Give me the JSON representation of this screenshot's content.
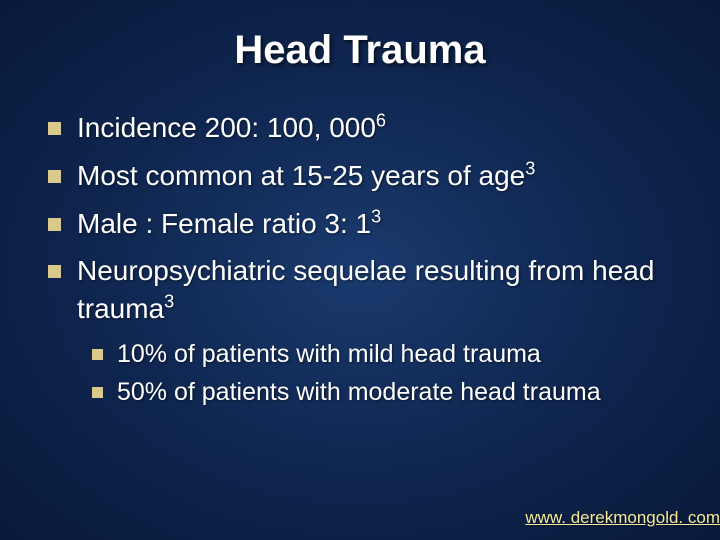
{
  "slide": {
    "title": "Head Trauma",
    "background_gradient": [
      "#1a3a6e",
      "#0f2650",
      "#081a3a"
    ],
    "title_color": "#ffffff",
    "text_color": "#ffffff",
    "bullet_color": "#d9c98a",
    "link_color": "#f5e89a",
    "title_fontsize": 40,
    "main_fontsize": 28,
    "sub_fontsize": 25,
    "main_bullets": [
      {
        "text": "Incidence 200: 100, 000",
        "sup": "6"
      },
      {
        "text": "Most common at 15-25 years of age",
        "sup": "3"
      },
      {
        "text": "Male : Female ratio 3: 1",
        "sup": "3"
      },
      {
        "text": "Neuropsychiatric sequelae resulting from head trauma",
        "sup": "3"
      }
    ],
    "sub_bullets": [
      {
        "text": "10% of patients with mild head trauma"
      },
      {
        "text": "50% of patients with moderate head trauma"
      }
    ],
    "footer_link": "www. derekmongold. com"
  }
}
